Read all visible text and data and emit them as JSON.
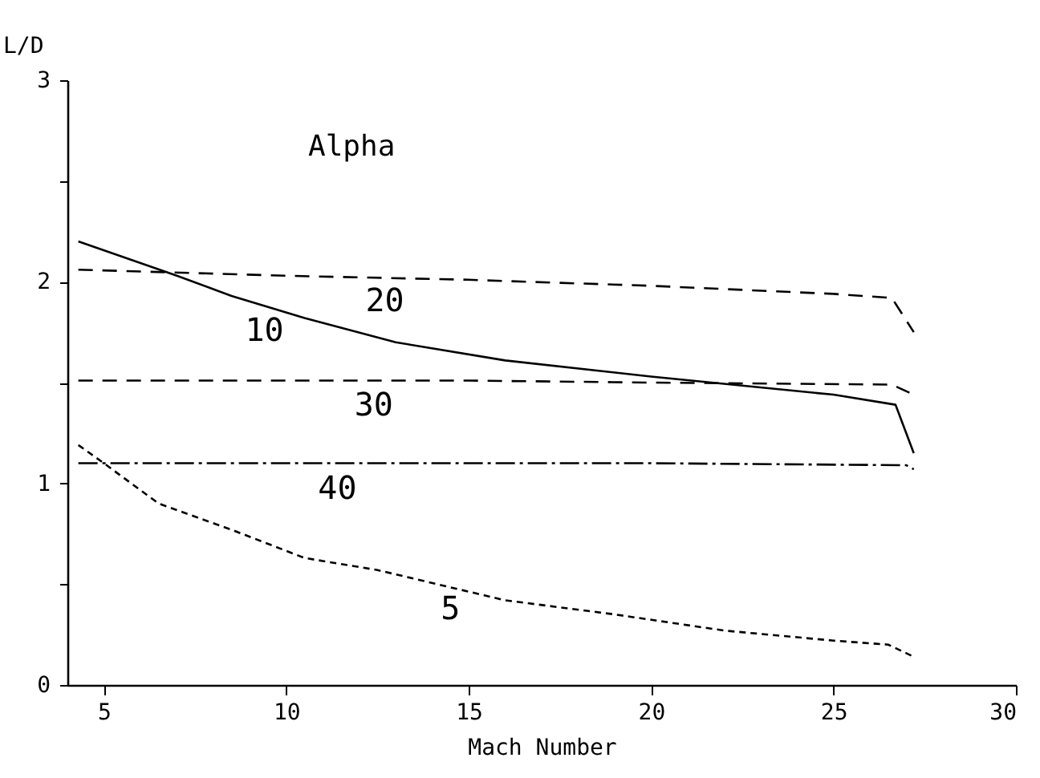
{
  "chart_data": {
    "type": "line",
    "xlabel": "Mach Number",
    "ylabel": "L/D",
    "legend_title": "Alpha",
    "xlim": [
      4,
      30
    ],
    "xticks": [
      5,
      10,
      15,
      20,
      25,
      30
    ],
    "ylim": [
      0,
      3
    ],
    "yticks": [
      0,
      {
        "value": 0.5,
        "label": null
      },
      1,
      {
        "value": 1.5,
        "label": null
      },
      2,
      {
        "value": 2.5,
        "label": null
      },
      3
    ],
    "grid": false,
    "series": [
      {
        "color": "#000000",
        "line_style": "dotted",
        "x": [
          4.3,
          5,
          6.5,
          8.5,
          10.5,
          12.5,
          16,
          19,
          22,
          25,
          26.5,
          27.2
        ],
        "values": [
          1.19,
          1.1,
          0.9,
          0.77,
          0.63,
          0.57,
          0.42,
          0.35,
          0.27,
          0.22,
          0.2,
          0.14
        ]
      },
      {
        "color": "#000000",
        "line_style": "solid",
        "x": [
          4.3,
          7,
          8.5,
          10.5,
          13,
          16,
          20,
          25,
          26.7,
          27.2
        ],
        "values": [
          2.2,
          2.03,
          1.93,
          1.82,
          1.7,
          1.61,
          1.53,
          1.44,
          1.39,
          1.15
        ]
      },
      {
        "color": "#000000",
        "line_style": "dashed",
        "x": [
          4.3,
          10,
          15,
          20,
          25,
          26.6,
          27.2
        ],
        "values": [
          2.06,
          2.03,
          2.01,
          1.98,
          1.94,
          1.92,
          1.75
        ]
      },
      {
        "color": "#000000",
        "line_style": "dashed",
        "x": [
          4.3,
          15,
          20,
          26.6,
          27.2
        ],
        "values": [
          1.51,
          1.51,
          1.5,
          1.49,
          1.44
        ]
      },
      {
        "color": "#000000",
        "line_style": "dashdot",
        "x": [
          4.3,
          15,
          20,
          27,
          27.2
        ],
        "values": [
          1.1,
          1.1,
          1.1,
          1.09,
          1.07
        ]
      }
    ],
    "annotations": [
      {
        "text": "5",
        "x": 14.5,
        "y": 0.5
      },
      {
        "text": "10",
        "x": 9.4,
        "y": 1.88
      },
      {
        "text": "20",
        "x": 12.7,
        "y": 2.03
      },
      {
        "text": "30",
        "x": 12.4,
        "y": 1.51
      },
      {
        "text": "40",
        "x": 11.4,
        "y": 1.1
      }
    ]
  }
}
